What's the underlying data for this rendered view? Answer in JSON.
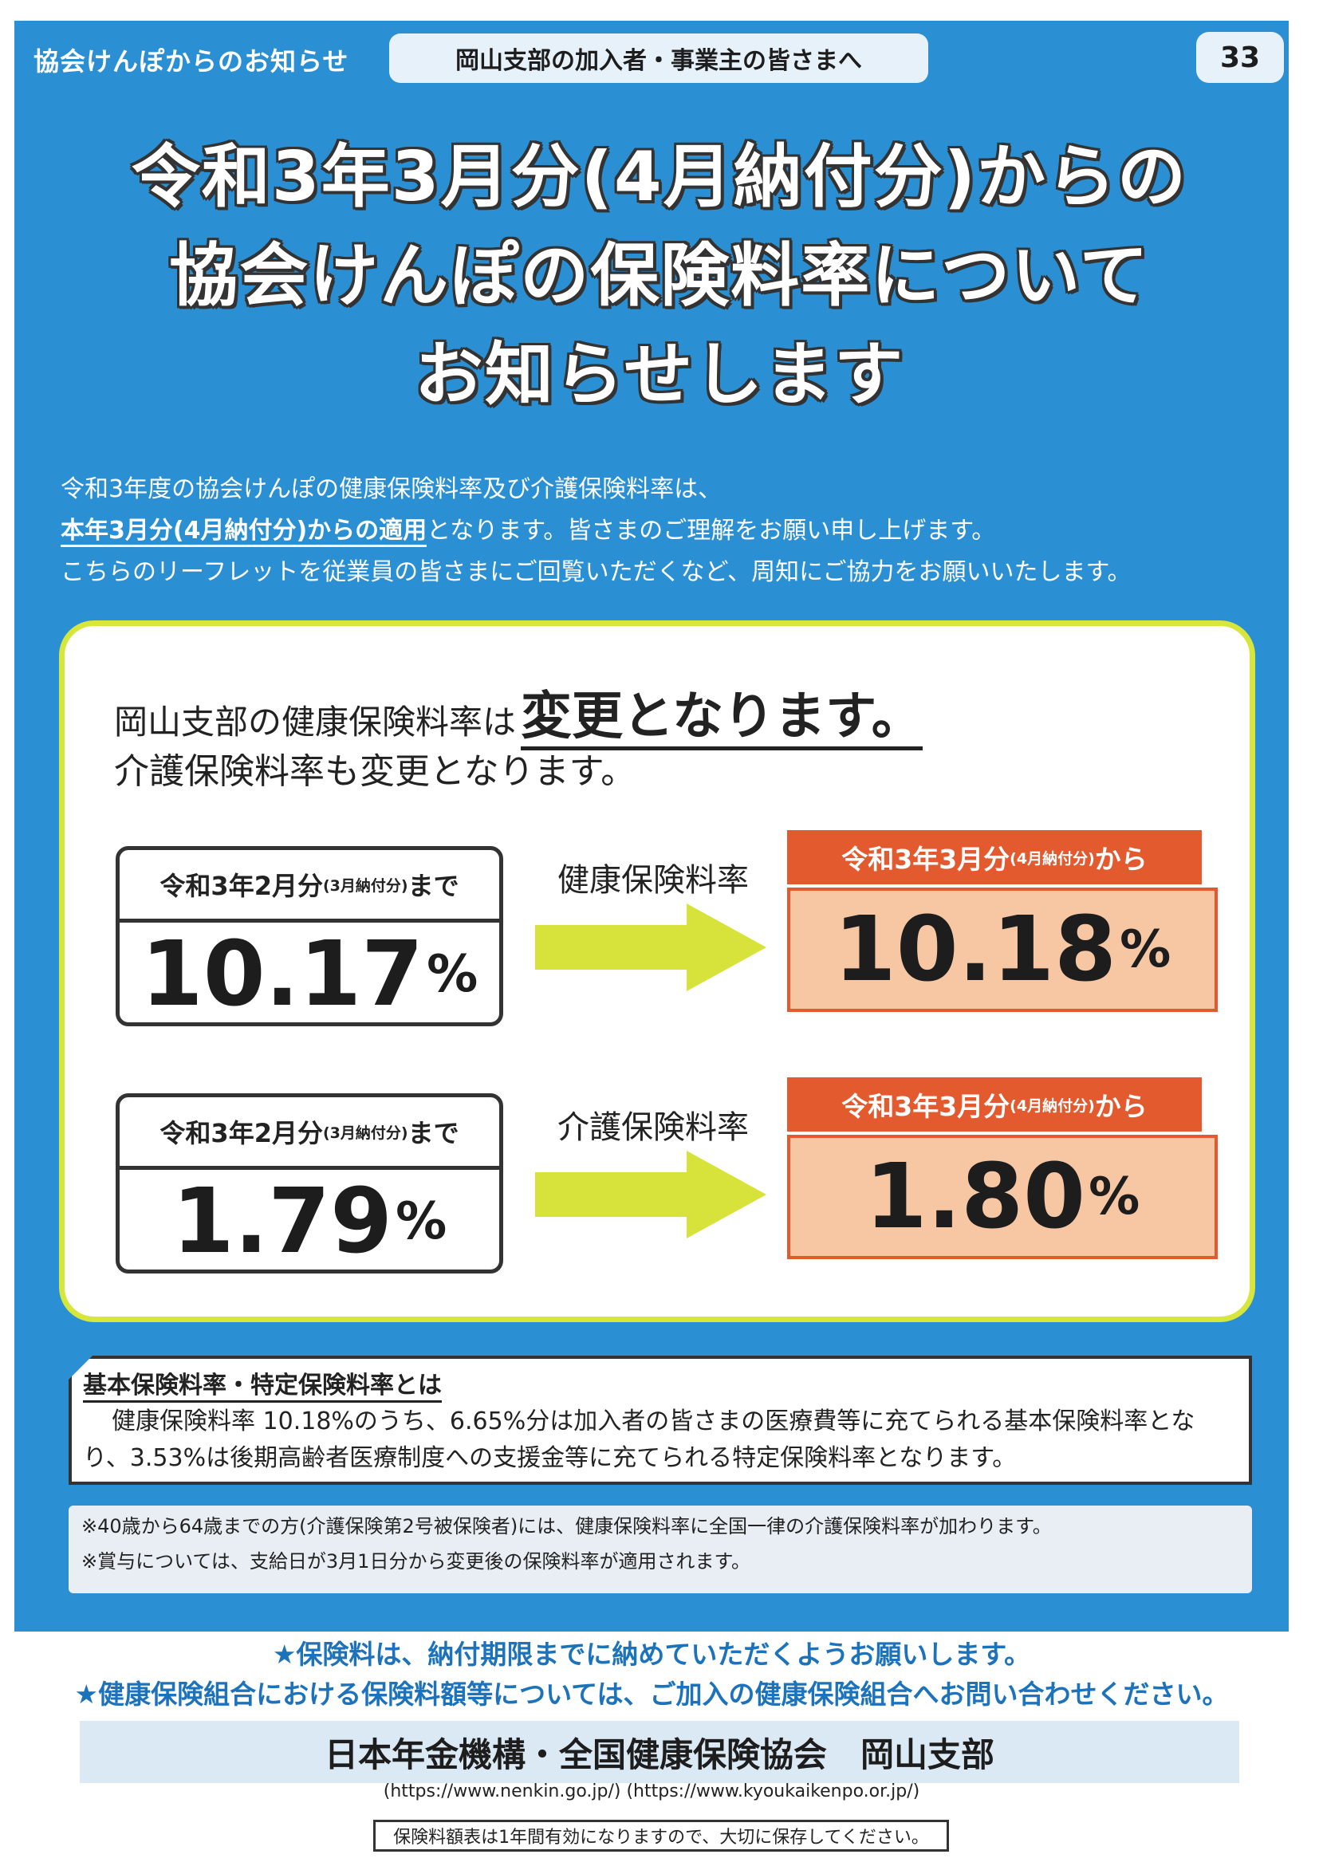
{
  "header": {
    "left_label": "協会けんぽからのお知らせ",
    "audience": "岡山支部の加入者・事業主の皆さまへ",
    "page_number": "33"
  },
  "title": {
    "line1": "令和3年3月分(4月納付分)からの",
    "line2": "協会けんぽの保険料率について",
    "line3": "お知らせします"
  },
  "intro": {
    "line1": "令和3年度の協会けんぽの健康保険料率及び介護保険料率は、",
    "line2_strong": "本年3月分(4月納付分)からの適用",
    "line2_rest": "となります。皆さまのご理解をお願い申し上げます。",
    "line3": "こちらのリーフレットを従業員の皆さまにご回覧いただくなど、周知にご協力をお願いいたします。"
  },
  "main_card": {
    "line1_prefix": "岡山支部の健康保険料率は",
    "line1_big": "変更となります。",
    "line2": "介護保険料率も変更となります。",
    "rates": [
      {
        "label": "健康保険料率",
        "old_head_main": "令和3年2月分",
        "old_head_small": "(3月納付分)",
        "old_head_tail": "まで",
        "old_value": "10.17",
        "new_head_main": "令和3年3月分",
        "new_head_small": "(4月納付分)",
        "new_head_tail": "から",
        "new_value": "10.18",
        "unit": "%"
      },
      {
        "label": "介護保険料率",
        "old_head_main": "令和3年2月分",
        "old_head_small": "(3月納付分)",
        "old_head_tail": "まで",
        "old_value": "1.79",
        "new_head_main": "令和3年3月分",
        "new_head_small": "(4月納付分)",
        "new_head_tail": "から",
        "new_value": "1.80",
        "unit": "%"
      }
    ]
  },
  "kihon": {
    "title": "基本保険料率・特定保険料率とは",
    "body": "健康保険料率 10.18%のうち、6.65%分は加入者の皆さまの医療費等に充てられる基本保険料率となり、3.53%は後期高齢者医療制度への支援金等に充てられる特定保険料率となります。"
  },
  "notes": [
    "※40歳から64歳までの方(介護保険第2号被保険者)には、健康保険料率に全国一律の介護保険料率が加わります。",
    "※賞与については、支給日が3月1日分から変更後の保険料率が適用されます。"
  ],
  "stars": [
    "★保険料は、納付期限までに納めていただくようお願いします。",
    "★健康保険組合における保険料額等については、ご加入の健康保険組合へお問い合わせください。"
  ],
  "org": "日本年金機構・全国健康保険協会　岡山支部",
  "urls": "(https://www.nenkin.go.jp/) (https://www.kyoukaikenpo.or.jp/)",
  "footer_note": "保険料額表は1年間有効になりますので、大切に保存してください。",
  "colors": {
    "panel_blue": "#2a8fd3",
    "card_border_yellow": "#d6e63b",
    "arrow_yellow": "#d7e33a",
    "new_head_orange": "#e35a2f",
    "new_box_peach": "#f7c7a4",
    "star_text_blue": "#1c72bb"
  }
}
